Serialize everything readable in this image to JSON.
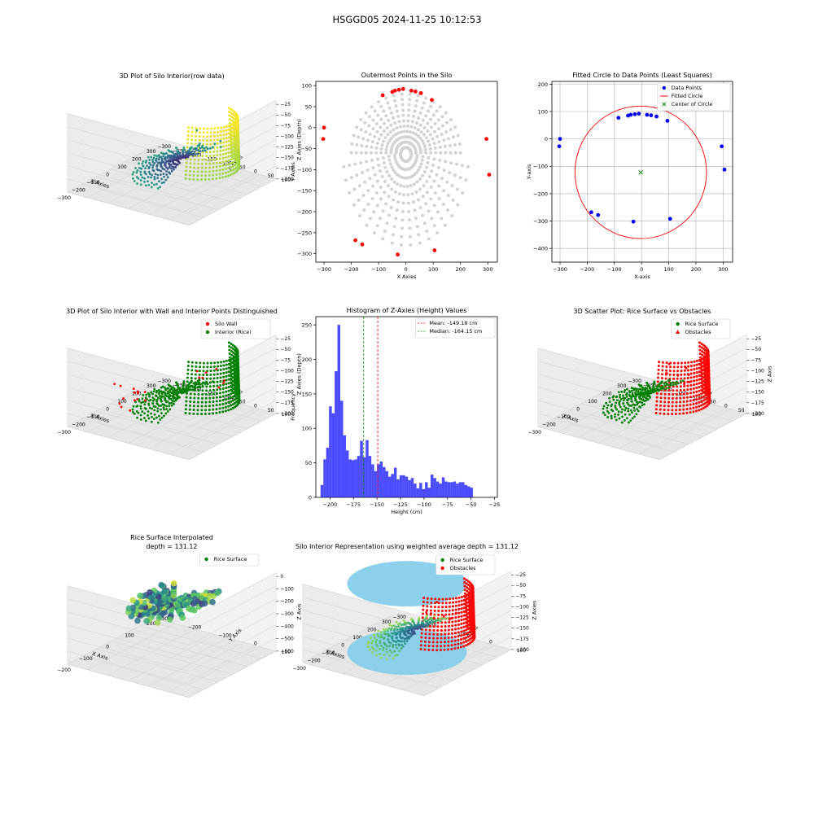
{
  "figure": {
    "suptitle": "HSGGD05 2024-11-25 10:12:53"
  },
  "chart_data": [
    {
      "id": "p1",
      "type": "scatter",
      "projection": "3d",
      "title": "3D Plot of Silo Interior(row data)",
      "xlabel": "X Axies",
      "ylabel": "Y Axies",
      "zlabel": "Z Axies (Depth)",
      "xticks": [
        "−300",
        "−200",
        "−100",
        "0",
        "100",
        "200",
        "300"
      ],
      "yticks": [
        "100",
        "50",
        "0",
        "−50",
        "−100",
        "−150",
        "−200",
        "−250",
        "−300"
      ],
      "zticks": [
        "−25",
        "−50",
        "−75",
        "−100",
        "−125",
        "−150",
        "−175",
        "−200"
      ],
      "colormap": "viridis",
      "xlim": [
        -300,
        300
      ],
      "ylim": [
        -300,
        100
      ],
      "zlim": [
        -210,
        -25
      ]
    },
    {
      "id": "p2",
      "type": "scatter",
      "title": "Outermost Points in the Silo",
      "xlabel": "X Axies",
      "ylabel": "Y Axies",
      "xlim": [
        -330,
        335
      ],
      "ylim": [
        -320,
        110
      ],
      "xticks": [
        -300,
        -200,
        -100,
        0,
        100,
        200,
        300
      ],
      "yticks": [
        100,
        50,
        0,
        -50,
        -100,
        -150,
        -200,
        -250,
        -300
      ],
      "colors": {
        "all": "#d3d3d3",
        "outer": "#ff0000"
      },
      "outer_points": {
        "x": [
          -300,
          -303,
          -85,
          -50,
          -40,
          -25,
          -10,
          20,
          35,
          55,
          95,
          295,
          305,
          -185,
          -160,
          -30,
          105
        ],
        "y": [
          0,
          -27,
          77,
          85,
          88,
          90,
          92,
          88,
          86,
          82,
          66,
          -27,
          -112,
          -268,
          -278,
          -302,
          -292
        ]
      }
    },
    {
      "id": "p3",
      "type": "scatter",
      "title": "Fitted Circle to Data Points (Least Squares)",
      "xlabel": "X-axis",
      "ylabel": "Y-axis",
      "xlim": [
        -330,
        335
      ],
      "ylim": [
        -450,
        210
      ],
      "xticks": [
        -300,
        -200,
        -100,
        0,
        100,
        200,
        300
      ],
      "yticks": [
        200,
        100,
        0,
        -100,
        -200,
        -300,
        -400
      ],
      "grid": true,
      "legend": [
        "Data Points",
        "Fitted Circle",
        "Center of Circle"
      ],
      "legend_position": "top-right",
      "colors": {
        "points": "#0000ff",
        "circle": "#ff0000",
        "center": "#008000"
      },
      "data_points": {
        "x": [
          -300,
          -303,
          -85,
          -50,
          -40,
          -25,
          -10,
          20,
          35,
          55,
          95,
          295,
          305,
          -185,
          -160,
          -30,
          105
        ],
        "y": [
          0,
          -27,
          77,
          85,
          88,
          90,
          92,
          88,
          86,
          82,
          66,
          -27,
          -112,
          -268,
          -278,
          -302,
          -292
        ]
      },
      "circle": {
        "cx": -3,
        "cy": -122,
        "r": 242
      }
    },
    {
      "id": "p4",
      "type": "scatter",
      "projection": "3d",
      "title": "3D Plot of Silo Interior with Wall and Interior Points Distinguished",
      "xlabel": "X Axies",
      "ylabel": "Y Axies",
      "zlabel": "Z Axies (Depth)",
      "xticks": [
        "−300",
        "−200",
        "−100",
        "0",
        "100",
        "200",
        "300"
      ],
      "yticks": [
        "100",
        "50",
        "0",
        "−50",
        "−100",
        "−150",
        "−200",
        "−250",
        "−300"
      ],
      "zticks": [
        "−25",
        "−50",
        "−75",
        "−100",
        "−125",
        "−150",
        "−175",
        "−200"
      ],
      "legend": [
        "Silo Wall",
        "Interior (Rice)"
      ],
      "legend_position": "top-right",
      "colors": {
        "wall": "#ff0000",
        "interior": "#008000"
      }
    },
    {
      "id": "p5",
      "type": "bar",
      "subtype": "histogram",
      "title": "Histogram of Z-Axies (Height) Values",
      "xlabel": "Height (cm)",
      "ylabel": "Frequency",
      "xlim": [
        -215,
        -22
      ],
      "ylim": [
        0,
        262
      ],
      "xticks": [
        -200,
        -175,
        -150,
        -125,
        -100,
        -75,
        -50,
        -25
      ],
      "yticks": [
        0,
        50,
        100,
        150,
        200,
        250
      ],
      "bin_start": -210,
      "bin_width": 3,
      "values": [
        18,
        55,
        72,
        132,
        122,
        183,
        250,
        140,
        90,
        68,
        55,
        54,
        55,
        60,
        82,
        58,
        83,
        60,
        48,
        38,
        48,
        52,
        44,
        38,
        30,
        34,
        43,
        26,
        32,
        32,
        30,
        25,
        28,
        20,
        13,
        21,
        12,
        22,
        14,
        33,
        28,
        23,
        20,
        29,
        23,
        22,
        22,
        23,
        20,
        22,
        22,
        18,
        16,
        14
      ],
      "bar_color": "#0000ff",
      "mean": -149.18,
      "median": -164.15,
      "legend": [
        "Mean: -149.18 cm",
        "Median: -164.15 cm"
      ],
      "legend_position": "top-right"
    },
    {
      "id": "p6",
      "type": "scatter",
      "projection": "3d",
      "title": "3D Scatter Plot: Rice Surface vs Obstacles",
      "xlabel": "X Axis",
      "ylabel": "Y Axis",
      "zlabel": "Z Axis",
      "xticks": [
        "−300",
        "−200",
        "−100",
        "0",
        "100",
        "200",
        "300"
      ],
      "yticks": [
        "100",
        "50",
        "0",
        "−50",
        "−100",
        "−150",
        "−200",
        "−250",
        "−300"
      ],
      "zticks": [
        "−25",
        "−50",
        "−75",
        "−100",
        "−125",
        "−150",
        "−175",
        "−200"
      ],
      "legend": [
        "Rice Surface",
        "Obstacles"
      ],
      "legend_position": "top-right",
      "colors": {
        "rice": "#008000",
        "obstacles": "#ff0000"
      }
    },
    {
      "id": "p7",
      "type": "area",
      "subtype": "surface3d",
      "title": "Rice Surface Interpolated\ndepth = 131.12",
      "title_lines": [
        "Rice Surface Interpolated",
        "depth = 131.12"
      ],
      "xlabel": "X Axis",
      "ylabel": "Y Axis",
      "zlabel": "Z Axis",
      "xticks": [
        "−200",
        "−100",
        "0",
        "100",
        "200"
      ],
      "yticks": [
        "100",
        "0",
        "−100",
        "−200",
        "−300"
      ],
      "zticks": [
        "0",
        "−100",
        "−200",
        "−300",
        "−400",
        "−500",
        "−600"
      ],
      "legend": [
        "Rice Surface"
      ],
      "legend_position": "top-right",
      "colors": {
        "rice": "#008000"
      }
    },
    {
      "id": "p8",
      "type": "scatter",
      "projection": "3d",
      "title": "Silo Interior Representation using weighted average depth = 131.12",
      "xlabel": "X Axies",
      "ylabel": "Y Axies",
      "zlabel": "Z Axies",
      "xticks": [
        "−300",
        "−200",
        "−100",
        "0",
        "100",
        "200",
        "300"
      ],
      "yticks": [
        "100",
        "0",
        "−100",
        "−200",
        "−300"
      ],
      "zticks": [
        "−25",
        "−50",
        "−75",
        "−100",
        "−125",
        "−150",
        "−175",
        "−200"
      ],
      "legend": [
        "Rice Surface",
        "Obstacles"
      ],
      "legend_position": "top-right",
      "colors": {
        "rice": "#008000",
        "obstacles": "#ff0000",
        "cylinder": "#87ceeb"
      }
    }
  ]
}
